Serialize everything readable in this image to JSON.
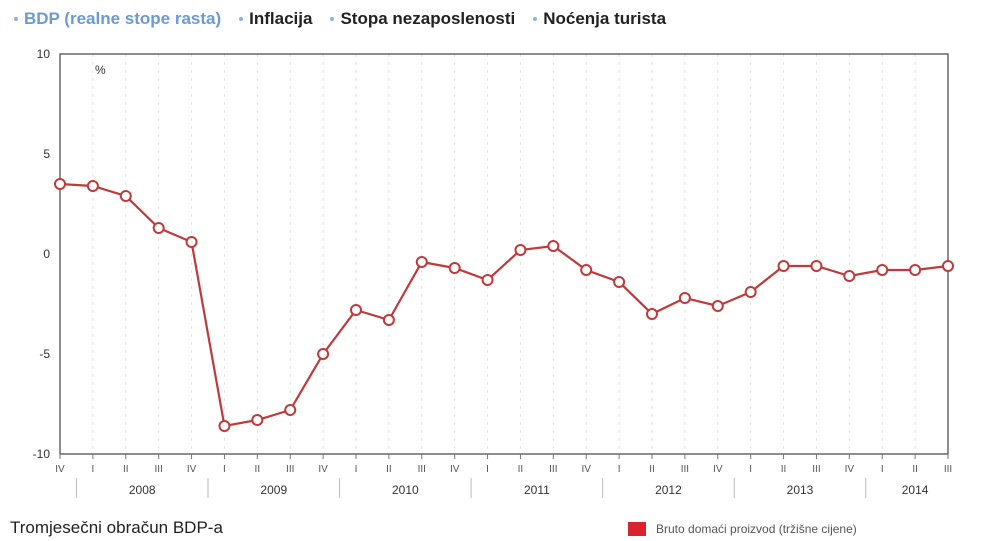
{
  "tabs": [
    {
      "label": "BDP (realne stope rasta)",
      "active": true
    },
    {
      "label": "Inflacija",
      "active": false
    },
    {
      "label": "Stopa nezaposlenosti",
      "active": false
    },
    {
      "label": "Noćenja turista",
      "active": false
    }
  ],
  "footer": {
    "title": "Tromjesečni obračun BDP-a",
    "legend_label": "Bruto domaći proizvod (tržišne cijene)",
    "legend_color": "#d9232d"
  },
  "chart_data": {
    "type": "line",
    "ylabel": "%",
    "ylim": [
      -10,
      10
    ],
    "yticks": [
      10,
      5,
      0,
      -5,
      -10
    ],
    "grid": "vertical dotted",
    "color": "#c0393b",
    "quarters": [
      "IV",
      "I",
      "II",
      "III",
      "IV",
      "I",
      "II",
      "III",
      "IV",
      "I",
      "II",
      "III",
      "IV",
      "I",
      "II",
      "III",
      "IV",
      "I",
      "II",
      "III",
      "IV",
      "I",
      "II",
      "III",
      "IV",
      "I",
      "II",
      "III"
    ],
    "years": [
      {
        "label": "2008",
        "start": 1,
        "end": 4
      },
      {
        "label": "2009",
        "start": 5,
        "end": 8
      },
      {
        "label": "2010",
        "start": 9,
        "end": 12
      },
      {
        "label": "2011",
        "start": 13,
        "end": 16
      },
      {
        "label": "2012",
        "start": 17,
        "end": 20
      },
      {
        "label": "2013",
        "start": 21,
        "end": 24
      },
      {
        "label": "2014",
        "start": 25,
        "end": 27
      }
    ],
    "series": [
      {
        "values": [
          3.5,
          3.4,
          2.9,
          1.3,
          0.6,
          -8.6,
          -8.3,
          -7.8,
          -5.0,
          -2.8,
          -3.3,
          -0.4,
          -0.7,
          -1.3,
          0.2,
          0.4,
          -0.8,
          -1.4,
          -3.0,
          -2.2,
          -2.6,
          -1.9,
          -0.6,
          -0.6,
          -1.1,
          -0.8,
          -0.8,
          -0.6
        ]
      }
    ]
  }
}
